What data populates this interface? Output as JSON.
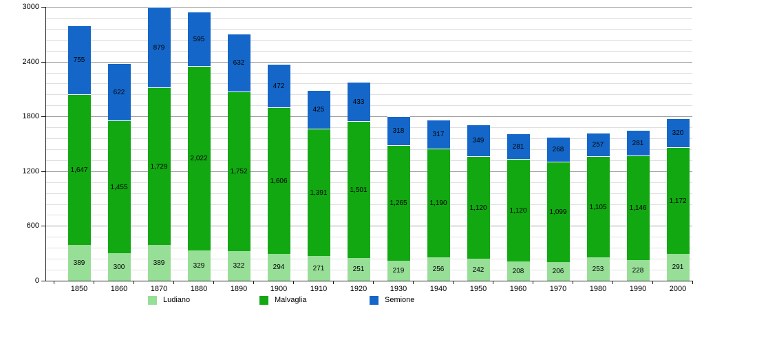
{
  "chart_data": {
    "type": "bar",
    "stacked": true,
    "title": "",
    "xlabel": "",
    "ylabel": "",
    "categories": [
      "1850",
      "1860",
      "1870",
      "1880",
      "1890",
      "1900",
      "1910",
      "1920",
      "1930",
      "1940",
      "1950",
      "1960",
      "1970",
      "1980",
      "1990",
      "2000"
    ],
    "series": [
      {
        "name": "Ludiano",
        "color": "#97de97",
        "values": [
          389,
          300,
          389,
          329,
          322,
          294,
          271,
          251,
          219,
          256,
          242,
          208,
          206,
          253,
          228,
          291
        ]
      },
      {
        "name": "Malvaglia",
        "color": "#12a812",
        "values": [
          1647,
          1455,
          1729,
          2022,
          1752,
          1606,
          1391,
          1501,
          1265,
          1190,
          1120,
          1120,
          1099,
          1105,
          1146,
          1172
        ]
      },
      {
        "name": "Semione",
        "color": "#1467c8",
        "values": [
          755,
          622,
          879,
          595,
          632,
          472,
          425,
          433,
          318,
          317,
          349,
          281,
          268,
          257,
          281,
          320
        ]
      }
    ],
    "ylim": [
      0,
      3000
    ],
    "yticks": [
      0,
      600,
      1200,
      1800,
      2400,
      3000
    ],
    "minor_grid_step": 120,
    "grid": true,
    "legend_position": "bottom",
    "value_labels": "on-segments",
    "colors": {
      "minor_gridline": "#dedede",
      "major_gridline": "#9e9e9e",
      "axis": "#1a1a1a",
      "background": "#ffffff",
      "label_text": "#000000"
    }
  }
}
